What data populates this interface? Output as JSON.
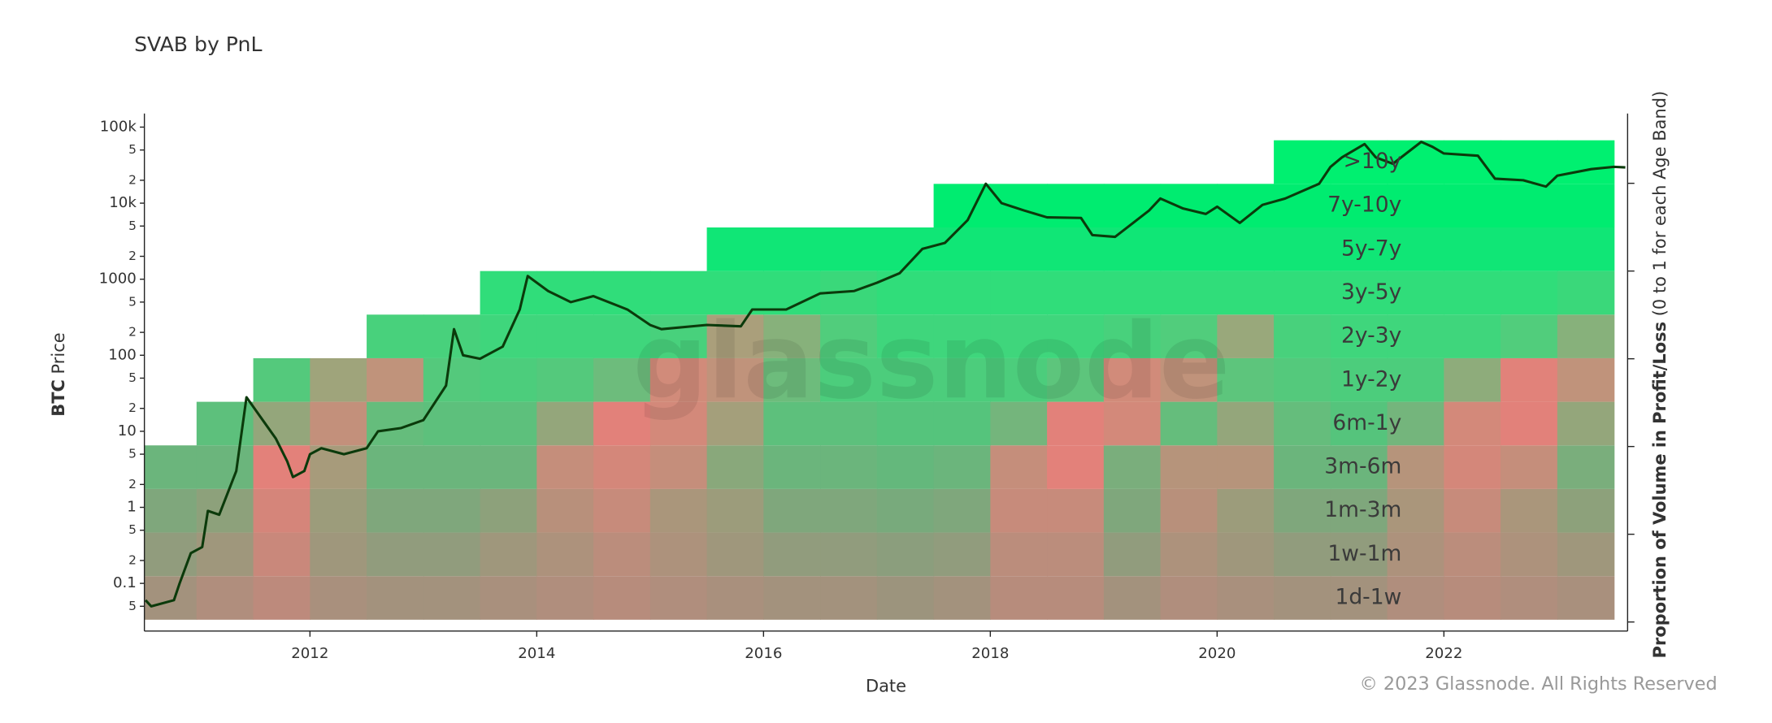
{
  "chart_data": {
    "type": "age_band_price",
    "title": "SVAB by PnL",
    "x_label": "Date",
    "y_label": {
      "bold": "BTC",
      "rest": " Price"
    },
    "y2_label": {
      "bold": "Proportion of Volume in Profit/Loss",
      "rest": " (0 to 1 for each Age Band)"
    },
    "watermark": "glassnode",
    "copyright": "© 2023 Glassnode. All Rights Reserved",
    "xlim": [
      2010.54,
      2023.62
    ],
    "xticks": [
      2012,
      2014,
      2016,
      2018,
      2020,
      2022
    ],
    "ylog": true,
    "ylim": [
      0.0236,
      151000
    ],
    "yticks": [
      {
        "value": 100000,
        "label": "100k"
      },
      {
        "value": 50000,
        "label": "5"
      },
      {
        "value": 20000,
        "label": "2"
      },
      {
        "value": 10000,
        "label": "10k"
      },
      {
        "value": 5000,
        "label": "5"
      },
      {
        "value": 2000,
        "label": "2"
      },
      1000,
      {
        "value": 500,
        "label": "5"
      },
      {
        "value": 200,
        "label": "2"
      },
      100,
      {
        "value": 50,
        "label": "5"
      },
      {
        "value": 20,
        "label": "2"
      },
      10,
      {
        "value": 5,
        "label": "5"
      },
      {
        "value": 2,
        "label": "2"
      },
      1,
      {
        "value": 0.5,
        "label": "5"
      },
      {
        "value": 0.2,
        "label": "2"
      },
      0.1,
      {
        "value": 0.05,
        "label": "5"
      }
    ],
    "price": {
      "color": "#0b3a0b",
      "x": [
        2010.55,
        2010.6,
        2010.8,
        2010.85,
        2010.95,
        2011.05,
        2011.1,
        2011.2,
        2011.35,
        2011.44,
        2011.6,
        2011.7,
        2011.8,
        2011.85,
        2011.95,
        2012.0,
        2012.1,
        2012.3,
        2012.5,
        2012.6,
        2012.8,
        2013.0,
        2013.2,
        2013.27,
        2013.35,
        2013.5,
        2013.7,
        2013.85,
        2013.92,
        2014.1,
        2014.3,
        2014.5,
        2014.8,
        2015.0,
        2015.1,
        2015.5,
        2015.8,
        2015.9,
        2016.2,
        2016.5,
        2016.8,
        2017.0,
        2017.2,
        2017.4,
        2017.6,
        2017.8,
        2017.96,
        2018.1,
        2018.3,
        2018.5,
        2018.8,
        2018.9,
        2019.1,
        2019.4,
        2019.5,
        2019.7,
        2019.9,
        2020.0,
        2020.2,
        2020.4,
        2020.6,
        2020.9,
        2021.0,
        2021.1,
        2021.3,
        2021.4,
        2021.55,
        2021.8,
        2021.9,
        2022.0,
        2022.3,
        2022.45,
        2022.7,
        2022.9,
        2023.0,
        2023.3,
        2023.5,
        2023.6
      ],
      "values": [
        0.06,
        0.05,
        0.06,
        0.1,
        0.25,
        0.3,
        0.9,
        0.8,
        3,
        28,
        13,
        8,
        4,
        2.5,
        3,
        5,
        6,
        5,
        6,
        10,
        11,
        14,
        40,
        220,
        100,
        90,
        130,
        400,
        1100,
        700,
        500,
        600,
        400,
        250,
        220,
        250,
        240,
        400,
        400,
        650,
        700,
        900,
        1200,
        2500,
        3000,
        6000,
        18000,
        10000,
        8000,
        6500,
        6400,
        3800,
        3600,
        8000,
        11500,
        8500,
        7200,
        9000,
        5500,
        9500,
        11500,
        18000,
        30000,
        40000,
        60000,
        40000,
        33000,
        64000,
        55000,
        45000,
        42000,
        21000,
        20000,
        16500,
        23000,
        28000,
        30000,
        29500
      ]
    },
    "loss_color": "#f27a7a",
    "bands": {
      "x": [
        2010.75,
        2011.25,
        2011.75,
        2012.25,
        2012.75,
        2013.25,
        2013.75,
        2014.25,
        2014.75,
        2015.25,
        2015.75,
        2016.25,
        2016.75,
        2017.25,
        2017.75,
        2018.25,
        2018.75,
        2019.25,
        2019.75,
        2020.25,
        2020.75,
        2021.25,
        2021.75,
        2022.25,
        2022.75,
        2023.25
      ],
      "series": [
        {
          "name": "1d-1w",
          "color": "#6ea27f",
          "values": [
            0.6,
            0.5,
            0.4,
            0.55,
            0.6,
            0.6,
            0.55,
            0.5,
            0.45,
            0.5,
            0.55,
            0.6,
            0.6,
            0.65,
            0.6,
            0.45,
            0.45,
            0.6,
            0.5,
            0.55,
            0.6,
            0.6,
            0.5,
            0.45,
            0.5,
            0.55
          ]
        },
        {
          "name": "1w-1m",
          "color": "#68aa7e",
          "values": [
            0.7,
            0.6,
            0.3,
            0.6,
            0.7,
            0.7,
            0.6,
            0.5,
            0.4,
            0.5,
            0.6,
            0.7,
            0.7,
            0.75,
            0.7,
            0.4,
            0.4,
            0.7,
            0.5,
            0.6,
            0.7,
            0.7,
            0.5,
            0.4,
            0.5,
            0.6
          ]
        },
        {
          "name": "1m-3m",
          "color": "#62b27c",
          "values": [
            0.8,
            0.7,
            0.2,
            0.6,
            0.8,
            0.8,
            0.7,
            0.4,
            0.3,
            0.5,
            0.6,
            0.8,
            0.8,
            0.85,
            0.8,
            0.3,
            0.3,
            0.8,
            0.4,
            0.6,
            0.8,
            0.8,
            0.5,
            0.3,
            0.5,
            0.7
          ]
        },
        {
          "name": "3m-6m",
          "color": "#5cbb7c",
          "values": [
            0.9,
            0.9,
            0.1,
            0.5,
            0.9,
            0.9,
            0.9,
            0.3,
            0.2,
            0.3,
            0.7,
            0.9,
            0.9,
            0.95,
            0.9,
            0.3,
            0.1,
            0.8,
            0.4,
            0.4,
            0.9,
            0.9,
            0.4,
            0.2,
            0.3,
            0.8
          ]
        },
        {
          "name": "6m-1y",
          "color": "#55c47c",
          "values": [
            null,
            0.95,
            0.6,
            0.3,
            0.9,
            0.95,
            0.95,
            0.6,
            0.1,
            0.2,
            0.5,
            0.95,
            0.95,
            1,
            1,
            0.8,
            0.1,
            0.2,
            0.9,
            0.6,
            0.9,
            1,
            0.8,
            0.2,
            0.1,
            0.6
          ]
        },
        {
          "name": "1y-2y",
          "color": "#4ccd7c",
          "values": [
            null,
            null,
            0.95,
            0.5,
            0.3,
            0.95,
            1,
            0.95,
            0.8,
            0.2,
            0.3,
            0.8,
            1,
            1,
            1,
            1,
            0.9,
            0.2,
            0.3,
            0.9,
            0.95,
            1,
            1,
            0.6,
            0.1,
            0.3
          ]
        },
        {
          "name": "2y-3y",
          "color": "#3fd67c",
          "values": [
            null,
            null,
            null,
            null,
            0.95,
            0.95,
            1,
            1,
            1,
            0.95,
            0.4,
            0.6,
            0.9,
            1,
            1,
            1,
            1,
            0.95,
            0.9,
            0.5,
            0.95,
            1,
            1,
            1,
            0.9,
            0.6
          ]
        },
        {
          "name": "3y-5y",
          "color": "#30dd7a",
          "values": [
            null,
            null,
            null,
            null,
            null,
            null,
            1,
            1,
            1,
            1,
            1,
            1,
            0.95,
            1,
            1,
            1,
            1,
            1,
            1,
            1,
            1,
            1,
            1,
            1,
            1,
            0.95
          ]
        },
        {
          "name": "5y-7y",
          "color": "#10e676",
          "values": [
            null,
            null,
            null,
            null,
            null,
            null,
            null,
            null,
            null,
            null,
            1,
            1,
            1,
            1,
            1,
            1,
            1,
            1,
            1,
            1,
            1,
            1,
            1,
            1,
            1,
            1
          ]
        },
        {
          "name": "7y-10y",
          "color": "#00ec70",
          "values": [
            null,
            null,
            null,
            null,
            null,
            null,
            null,
            null,
            null,
            null,
            null,
            null,
            null,
            null,
            1,
            1,
            1,
            1,
            1,
            1,
            1,
            1,
            1,
            1,
            1,
            1
          ]
        },
        {
          "name": ">10y",
          "color": "#00f070",
          "values": [
            null,
            null,
            null,
            null,
            null,
            null,
            null,
            null,
            null,
            null,
            null,
            null,
            null,
            null,
            null,
            null,
            null,
            null,
            null,
            null,
            1,
            1,
            1,
            1,
            1,
            1
          ]
        }
      ]
    }
  }
}
